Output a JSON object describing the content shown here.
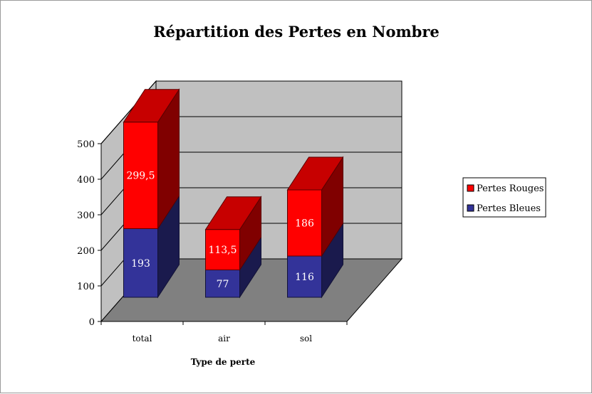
{
  "chart_data": {
    "type": "bar",
    "stacked": true,
    "three_d": true,
    "title": "Répartition des Pertes en Nombre",
    "xlabel": "Type de perte",
    "ylabel": "",
    "categories": [
      "total",
      "air",
      "sol"
    ],
    "series": [
      {
        "name": "Pertes Bleues",
        "color": "#333399",
        "values": [
          193,
          77,
          116
        ],
        "labels": [
          "193",
          "77",
          "116"
        ]
      },
      {
        "name": "Pertes Rouges",
        "color": "#ff0000",
        "values": [
          299.5,
          113.5,
          186
        ],
        "labels": [
          "299,5",
          "113,5",
          "186"
        ]
      }
    ],
    "ylim": [
      0,
      500
    ],
    "yticks": [
      0,
      100,
      200,
      300,
      400,
      500
    ],
    "legend_position": "right",
    "grid": true,
    "colors": {
      "wall": "#c0c0c0",
      "floor": "#808080"
    }
  }
}
